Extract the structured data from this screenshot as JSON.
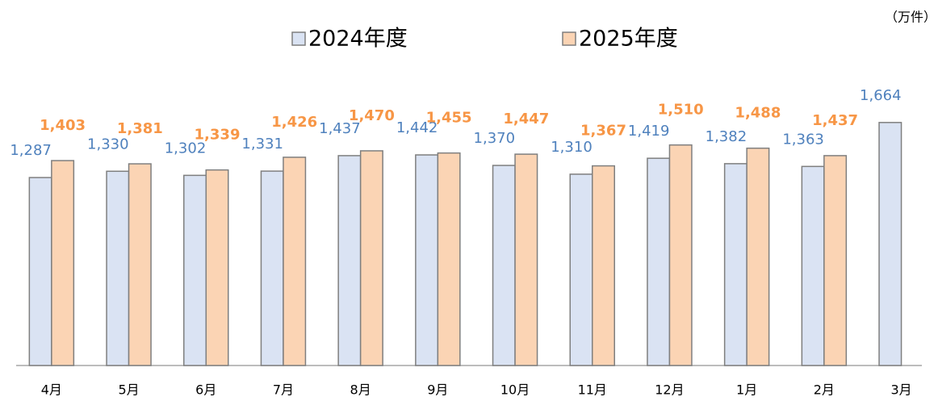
{
  "chart_data": {
    "type": "bar",
    "unit_label": "（万件）",
    "categories": [
      "4月",
      "5月",
      "6月",
      "7月",
      "8月",
      "9月",
      "10月",
      "11月",
      "12月",
      "1月",
      "2月",
      "3月"
    ],
    "series": [
      {
        "name": "2024年度",
        "color": "#dae3f3",
        "label_color": "#4f81bd",
        "values": [
          1287,
          1330,
          1302,
          1331,
          1437,
          1442,
          1370,
          1310,
          1419,
          1382,
          1363,
          1664
        ],
        "value_labels": [
          "1,287",
          "1,330",
          "1,302",
          "1,331",
          "1,437",
          "1,442",
          "1,370",
          "1,310",
          "1,419",
          "1,382",
          "1,363",
          "1,664"
        ]
      },
      {
        "name": "2025年度",
        "color": "#fbd4b4",
        "label_color": "#f79646",
        "values": [
          1403,
          1381,
          1339,
          1426,
          1470,
          1455,
          1447,
          1367,
          1510,
          1488,
          1437,
          null
        ],
        "value_labels": [
          "1,403",
          "1,381",
          "1,339",
          "1,426",
          "1,470",
          "1,455",
          "1,447",
          "1,367",
          "1,510",
          "1,488",
          "1,437",
          null
        ]
      }
    ],
    "ylim": [
      0,
      2000
    ]
  }
}
